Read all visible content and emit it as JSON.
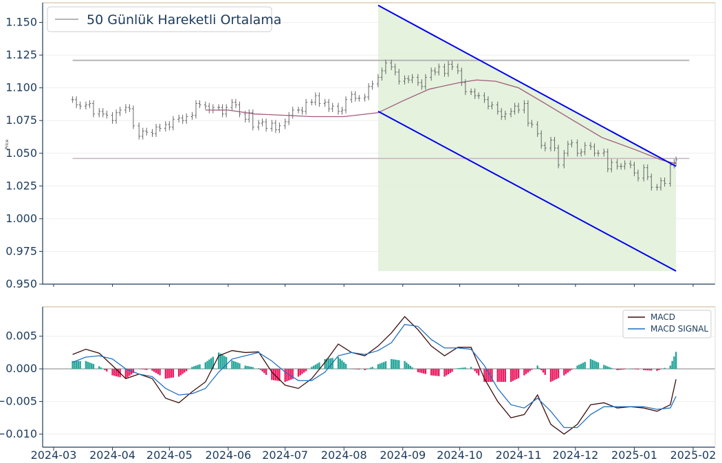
{
  "chart_data": [
    {
      "type": "candlestick",
      "ylabel": "Price",
      "ylim": [
        0.95,
        1.165
      ],
      "yticks": [
        "0.950",
        "0.975",
        "1.000",
        "1.025",
        "1.050",
        "1.075",
        "1.100",
        "1.125",
        "1.150"
      ],
      "legend": {
        "label": "50 Günlük Hareketli Ortalama",
        "position": "top-left"
      },
      "horizontal_levels": [
        1.121,
        1.046
      ],
      "channel": {
        "upper": {
          "start": [
            "2024-08-19",
            1.163
          ],
          "end": [
            "2025-01-23",
            1.04
          ]
        },
        "lower": {
          "start": [
            "2024-08-19",
            1.082
          ],
          "end": [
            "2025-01-23",
            0.96
          ]
        },
        "fill_color": "#dff0d8",
        "line_color": "#0000ee"
      },
      "close_series": [
        [
          "2024-03-11",
          1.091
        ],
        [
          "2024-03-13",
          1.087
        ],
        [
          "2024-03-15",
          1.086
        ],
        [
          "2024-03-18",
          1.087
        ],
        [
          "2024-03-20",
          1.088
        ],
        [
          "2024-03-22",
          1.08
        ],
        [
          "2024-03-25",
          1.082
        ],
        [
          "2024-03-27",
          1.08
        ],
        [
          "2024-03-29",
          1.079
        ],
        [
          "2024-04-01",
          1.075
        ],
        [
          "2024-04-03",
          1.081
        ],
        [
          "2024-04-05",
          1.083
        ],
        [
          "2024-04-08",
          1.085
        ],
        [
          "2024-04-10",
          1.084
        ],
        [
          "2024-04-12",
          1.071
        ],
        [
          "2024-04-15",
          1.063
        ],
        [
          "2024-04-17",
          1.067
        ],
        [
          "2024-04-19",
          1.066
        ],
        [
          "2024-04-22",
          1.065
        ],
        [
          "2024-04-24",
          1.07
        ],
        [
          "2024-04-26",
          1.069
        ],
        [
          "2024-04-29",
          1.072
        ],
        [
          "2024-05-01",
          1.07
        ],
        [
          "2024-05-03",
          1.076
        ],
        [
          "2024-05-06",
          1.077
        ],
        [
          "2024-05-08",
          1.075
        ],
        [
          "2024-05-10",
          1.078
        ],
        [
          "2024-05-13",
          1.079
        ],
        [
          "2024-05-15",
          1.088
        ],
        [
          "2024-05-17",
          1.087
        ],
        [
          "2024-05-20",
          1.086
        ],
        [
          "2024-05-22",
          1.083
        ],
        [
          "2024-05-24",
          1.085
        ],
        [
          "2024-05-27",
          1.085
        ],
        [
          "2024-05-29",
          1.08
        ],
        [
          "2024-05-31",
          1.085
        ],
        [
          "2024-06-03",
          1.089
        ],
        [
          "2024-06-05",
          1.087
        ],
        [
          "2024-06-07",
          1.08
        ],
        [
          "2024-06-10",
          1.076
        ],
        [
          "2024-06-12",
          1.081
        ],
        [
          "2024-06-14",
          1.07
        ],
        [
          "2024-06-17",
          1.073
        ],
        [
          "2024-06-19",
          1.074
        ],
        [
          "2024-06-21",
          1.069
        ],
        [
          "2024-06-24",
          1.073
        ],
        [
          "2024-06-26",
          1.068
        ],
        [
          "2024-06-28",
          1.071
        ],
        [
          "2024-07-01",
          1.074
        ],
        [
          "2024-07-03",
          1.079
        ],
        [
          "2024-07-05",
          1.083
        ],
        [
          "2024-07-08",
          1.083
        ],
        [
          "2024-07-10",
          1.082
        ],
        [
          "2024-07-12",
          1.089
        ],
        [
          "2024-07-15",
          1.089
        ],
        [
          "2024-07-17",
          1.094
        ],
        [
          "2024-07-19",
          1.088
        ],
        [
          "2024-07-22",
          1.089
        ],
        [
          "2024-07-24",
          1.084
        ],
        [
          "2024-07-26",
          1.086
        ],
        [
          "2024-07-29",
          1.082
        ],
        [
          "2024-07-31",
          1.083
        ],
        [
          "2024-08-02",
          1.091
        ],
        [
          "2024-08-05",
          1.095
        ],
        [
          "2024-08-07",
          1.092
        ],
        [
          "2024-08-09",
          1.092
        ],
        [
          "2024-08-12",
          1.093
        ],
        [
          "2024-08-14",
          1.101
        ],
        [
          "2024-08-16",
          1.103
        ],
        [
          "2024-08-19",
          1.108
        ],
        [
          "2024-08-21",
          1.113
        ],
        [
          "2024-08-23",
          1.119
        ],
        [
          "2024-08-26",
          1.116
        ],
        [
          "2024-08-28",
          1.112
        ],
        [
          "2024-08-30",
          1.105
        ],
        [
          "2024-09-02",
          1.107
        ],
        [
          "2024-09-04",
          1.106
        ],
        [
          "2024-09-06",
          1.108
        ],
        [
          "2024-09-09",
          1.104
        ],
        [
          "2024-09-11",
          1.101
        ],
        [
          "2024-09-13",
          1.108
        ],
        [
          "2024-09-16",
          1.113
        ],
        [
          "2024-09-18",
          1.112
        ],
        [
          "2024-09-20",
          1.116
        ],
        [
          "2024-09-23",
          1.111
        ],
        [
          "2024-09-25",
          1.118
        ],
        [
          "2024-09-27",
          1.116
        ],
        [
          "2024-09-30",
          1.113
        ],
        [
          "2024-10-02",
          1.104
        ],
        [
          "2024-10-04",
          1.097
        ],
        [
          "2024-10-07",
          1.097
        ],
        [
          "2024-10-09",
          1.094
        ],
        [
          "2024-10-11",
          1.094
        ],
        [
          "2024-10-14",
          1.091
        ],
        [
          "2024-10-16",
          1.086
        ],
        [
          "2024-10-18",
          1.087
        ],
        [
          "2024-10-21",
          1.082
        ],
        [
          "2024-10-23",
          1.078
        ],
        [
          "2024-10-25",
          1.08
        ],
        [
          "2024-10-28",
          1.082
        ],
        [
          "2024-10-30",
          1.086
        ],
        [
          "2024-11-01",
          1.083
        ],
        [
          "2024-11-04",
          1.088
        ],
        [
          "2024-11-06",
          1.073
        ],
        [
          "2024-11-08",
          1.072
        ],
        [
          "2024-11-11",
          1.065
        ],
        [
          "2024-11-13",
          1.056
        ],
        [
          "2024-11-15",
          1.054
        ],
        [
          "2024-11-18",
          1.06
        ],
        [
          "2024-11-20",
          1.054
        ],
        [
          "2024-11-22",
          1.041
        ],
        [
          "2024-11-25",
          1.05
        ],
        [
          "2024-11-27",
          1.057
        ],
        [
          "2024-11-29",
          1.058
        ],
        [
          "2024-12-02",
          1.05
        ],
        [
          "2024-12-04",
          1.051
        ],
        [
          "2024-12-06",
          1.056
        ],
        [
          "2024-12-09",
          1.055
        ],
        [
          "2024-12-11",
          1.05
        ],
        [
          "2024-12-13",
          1.05
        ],
        [
          "2024-12-16",
          1.051
        ],
        [
          "2024-12-18",
          1.038
        ],
        [
          "2024-12-20",
          1.043
        ],
        [
          "2024-12-23",
          1.04
        ],
        [
          "2024-12-25",
          1.04
        ],
        [
          "2024-12-27",
          1.042
        ],
        [
          "2024-12-30",
          1.041
        ],
        [
          "2025-01-01",
          1.035
        ],
        [
          "2025-01-03",
          1.031
        ],
        [
          "2025-01-06",
          1.039
        ],
        [
          "2025-01-08",
          1.032
        ],
        [
          "2025-01-10",
          1.024
        ],
        [
          "2025-01-13",
          1.024
        ],
        [
          "2025-01-15",
          1.029
        ],
        [
          "2025-01-17",
          1.027
        ],
        [
          "2025-01-20",
          1.041
        ],
        [
          "2025-01-22",
          1.043
        ],
        [
          "2025-01-23",
          1.045
        ]
      ],
      "moving_average_50": [
        [
          "2024-05-20",
          1.083
        ],
        [
          "2024-06-01",
          1.083
        ],
        [
          "2024-06-15",
          1.08
        ],
        [
          "2024-07-01",
          1.079
        ],
        [
          "2024-07-15",
          1.078
        ],
        [
          "2024-08-01",
          1.078
        ],
        [
          "2024-08-19",
          1.081
        ],
        [
          "2024-09-01",
          1.09
        ],
        [
          "2024-09-15",
          1.099
        ],
        [
          "2024-10-01",
          1.104
        ],
        [
          "2024-10-10",
          1.106
        ],
        [
          "2024-10-20",
          1.105
        ],
        [
          "2024-11-01",
          1.1
        ],
        [
          "2024-11-15",
          1.088
        ],
        [
          "2024-12-01",
          1.074
        ],
        [
          "2024-12-15",
          1.062
        ],
        [
          "2025-01-01",
          1.053
        ],
        [
          "2025-01-15",
          1.045
        ],
        [
          "2025-01-23",
          1.042
        ]
      ]
    },
    {
      "type": "line+bar",
      "ylim": [
        -0.012,
        0.0095
      ],
      "yticks": [
        "−0.010",
        "−0.005",
        "0.000",
        "0.005"
      ],
      "xticks": [
        "2024-03",
        "2024-04",
        "2024-05",
        "2024-06",
        "2024-07",
        "2024-08",
        "2024-09",
        "2024-10",
        "2024-11",
        "2024-12",
        "2025-01",
        "2025-02"
      ],
      "legend": {
        "position": "top-right"
      },
      "series": [
        {
          "name": "MACD",
          "color": "#3b0d0d",
          "points": [
            [
              "2024-03-11",
              0.0022
            ],
            [
              "2024-03-18",
              0.003
            ],
            [
              "2024-03-25",
              0.0024
            ],
            [
              "2024-04-01",
              0.0005
            ],
            [
              "2024-04-08",
              -0.0015
            ],
            [
              "2024-04-15",
              -0.0008
            ],
            [
              "2024-04-22",
              -0.0015
            ],
            [
              "2024-04-29",
              -0.0045
            ],
            [
              "2024-05-06",
              -0.0052
            ],
            [
              "2024-05-13",
              -0.0035
            ],
            [
              "2024-05-20",
              -0.002
            ],
            [
              "2024-05-27",
              0.002
            ],
            [
              "2024-06-03",
              0.0028
            ],
            [
              "2024-06-10",
              0.0025
            ],
            [
              "2024-06-17",
              0.0026
            ],
            [
              "2024-06-24",
              -0.0005
            ],
            [
              "2024-07-01",
              -0.0025
            ],
            [
              "2024-07-08",
              -0.003
            ],
            [
              "2024-07-15",
              -0.0015
            ],
            [
              "2024-07-22",
              0.001
            ],
            [
              "2024-07-29",
              0.0038
            ],
            [
              "2024-08-05",
              0.0025
            ],
            [
              "2024-08-12",
              0.002
            ],
            [
              "2024-08-19",
              0.0035
            ],
            [
              "2024-08-26",
              0.0055
            ],
            [
              "2024-09-02",
              0.008
            ],
            [
              "2024-09-09",
              0.006
            ],
            [
              "2024-09-16",
              0.0035
            ],
            [
              "2024-09-23",
              0.002
            ],
            [
              "2024-09-30",
              0.0033
            ],
            [
              "2024-10-07",
              0.0033
            ],
            [
              "2024-10-14",
              -0.0015
            ],
            [
              "2024-10-21",
              -0.005
            ],
            [
              "2024-10-28",
              -0.0075
            ],
            [
              "2024-11-04",
              -0.007
            ],
            [
              "2024-11-11",
              -0.004
            ],
            [
              "2024-11-18",
              -0.0085
            ],
            [
              "2024-11-25",
              -0.01
            ],
            [
              "2024-12-02",
              -0.0085
            ],
            [
              "2024-12-09",
              -0.0055
            ],
            [
              "2024-12-16",
              -0.0052
            ],
            [
              "2024-12-23",
              -0.006
            ],
            [
              "2024-12-30",
              -0.0058
            ],
            [
              "2025-01-06",
              -0.006
            ],
            [
              "2025-01-13",
              -0.0065
            ],
            [
              "2025-01-20",
              -0.0055
            ],
            [
              "2025-01-23",
              -0.0016
            ]
          ]
        },
        {
          "name": "MACD SIGNAL",
          "color": "#1f6fbf",
          "points": [
            [
              "2024-03-11",
              0.001
            ],
            [
              "2024-03-18",
              0.0018
            ],
            [
              "2024-03-25",
              0.002
            ],
            [
              "2024-04-01",
              0.0015
            ],
            [
              "2024-04-08",
              0.0
            ],
            [
              "2024-04-15",
              -0.0008
            ],
            [
              "2024-04-22",
              -0.0012
            ],
            [
              "2024-04-29",
              -0.003
            ],
            [
              "2024-05-06",
              -0.004
            ],
            [
              "2024-05-13",
              -0.0038
            ],
            [
              "2024-05-20",
              -0.003
            ],
            [
              "2024-05-27",
              -0.0005
            ],
            [
              "2024-06-03",
              0.0015
            ],
            [
              "2024-06-10",
              0.002
            ],
            [
              "2024-06-17",
              0.0025
            ],
            [
              "2024-06-24",
              0.0012
            ],
            [
              "2024-07-01",
              -0.0005
            ],
            [
              "2024-07-08",
              -0.0018
            ],
            [
              "2024-07-15",
              -0.0018
            ],
            [
              "2024-07-22",
              -0.0005
            ],
            [
              "2024-07-29",
              0.002
            ],
            [
              "2024-08-05",
              0.0025
            ],
            [
              "2024-08-12",
              0.0022
            ],
            [
              "2024-08-19",
              0.0028
            ],
            [
              "2024-08-26",
              0.004
            ],
            [
              "2024-09-02",
              0.0068
            ],
            [
              "2024-09-09",
              0.0065
            ],
            [
              "2024-09-16",
              0.0045
            ],
            [
              "2024-09-23",
              0.0032
            ],
            [
              "2024-09-30",
              0.0032
            ],
            [
              "2024-10-07",
              0.003
            ],
            [
              "2024-10-14",
              0.0005
            ],
            [
              "2024-10-21",
              -0.003
            ],
            [
              "2024-10-28",
              -0.0055
            ],
            [
              "2024-11-04",
              -0.006
            ],
            [
              "2024-11-11",
              -0.0045
            ],
            [
              "2024-11-18",
              -0.0065
            ],
            [
              "2024-11-25",
              -0.009
            ],
            [
              "2024-12-02",
              -0.009
            ],
            [
              "2024-12-09",
              -0.007
            ],
            [
              "2024-12-16",
              -0.0058
            ],
            [
              "2024-12-23",
              -0.0058
            ],
            [
              "2024-12-30",
              -0.0058
            ],
            [
              "2025-01-06",
              -0.0058
            ],
            [
              "2025-01-13",
              -0.0062
            ],
            [
              "2025-01-20",
              -0.006
            ],
            [
              "2025-01-23",
              -0.0042
            ]
          ]
        }
      ]
    }
  ],
  "colors": {
    "axis": "#1b3a5c",
    "candle": "#666666",
    "moving_average": "#a05a7a",
    "level_upper": "#b5b5b5",
    "level_lower": "#c8b0c0",
    "hist_positive": "#26a69a",
    "hist_negative": "#e91e63",
    "panel_top_border": "#c8b48a"
  }
}
